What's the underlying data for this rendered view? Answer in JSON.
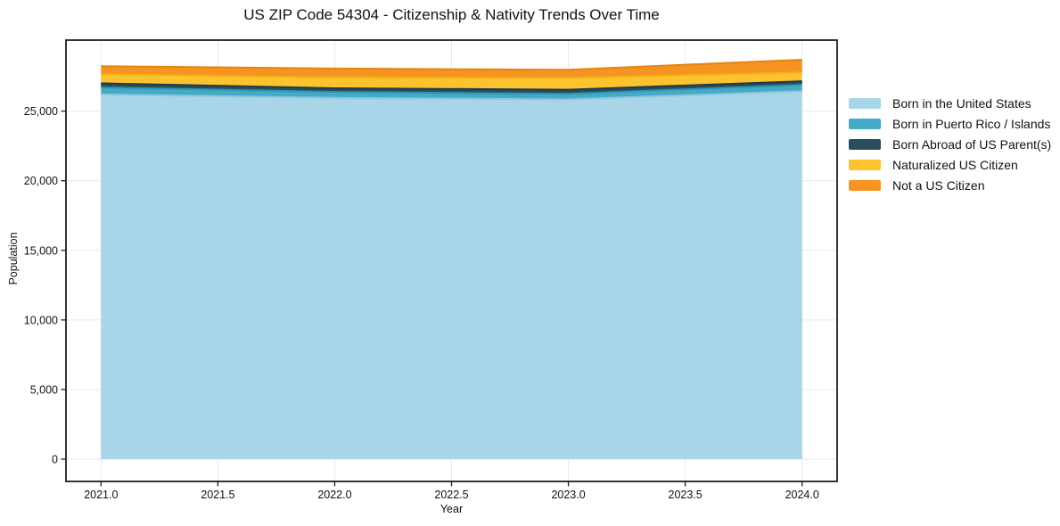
{
  "figure": {
    "background": "#ffffff"
  },
  "chart_data": {
    "type": "area",
    "stacked": true,
    "title": "US ZIP Code 54304 - Citizenship & Nativity Trends Over Time",
    "xlabel": "Year",
    "ylabel": "Population",
    "x": [
      2021,
      2022,
      2023,
      2024
    ],
    "series": [
      {
        "name": "Born in the United States",
        "values": [
          26200,
          25950,
          25840,
          26440
        ],
        "fill": "#A9D5E8",
        "edge": "#8CC6DF"
      },
      {
        "name": "Born in Puerto Rico / Islands",
        "values": [
          500,
          430,
          400,
          450
        ],
        "fill": "#44AAC5",
        "edge": "#2E96B3"
      },
      {
        "name": "Born Abroad of US Parent(s)",
        "values": [
          300,
          260,
          300,
          260
        ],
        "fill": "#2A4D5E",
        "edge": "#1E3D4C"
      },
      {
        "name": "Naturalized US Citizen",
        "values": [
          660,
          780,
          850,
          640
        ],
        "fill": "#FDC32E",
        "edge": "#F0B112"
      },
      {
        "name": "Not a US Citizen",
        "values": [
          570,
          640,
          580,
          900
        ],
        "fill": "#F79421",
        "edge": "#E8830F"
      }
    ],
    "xlim": [
      2020.85,
      2024.15
    ],
    "ylim": [
      -1600,
      30100
    ],
    "x_ticks": {
      "values": [
        2021.0,
        2021.5,
        2022.0,
        2022.5,
        2023.0,
        2023.5,
        2024.0
      ],
      "labels": [
        "2021.0",
        "2021.5",
        "2022.0",
        "2022.5",
        "2023.0",
        "2023.5",
        "2024.0"
      ]
    },
    "y_ticks": {
      "values": [
        0,
        5000,
        10000,
        15000,
        20000,
        25000
      ],
      "labels": [
        "0",
        "5,000",
        "10,000",
        "15,000",
        "20,000",
        "25,000"
      ]
    },
    "grid": true,
    "legend_position": "right"
  },
  "colors": {
    "grid": "#e9e9e9",
    "spine": "#1f1f1f",
    "text": "#111111"
  }
}
